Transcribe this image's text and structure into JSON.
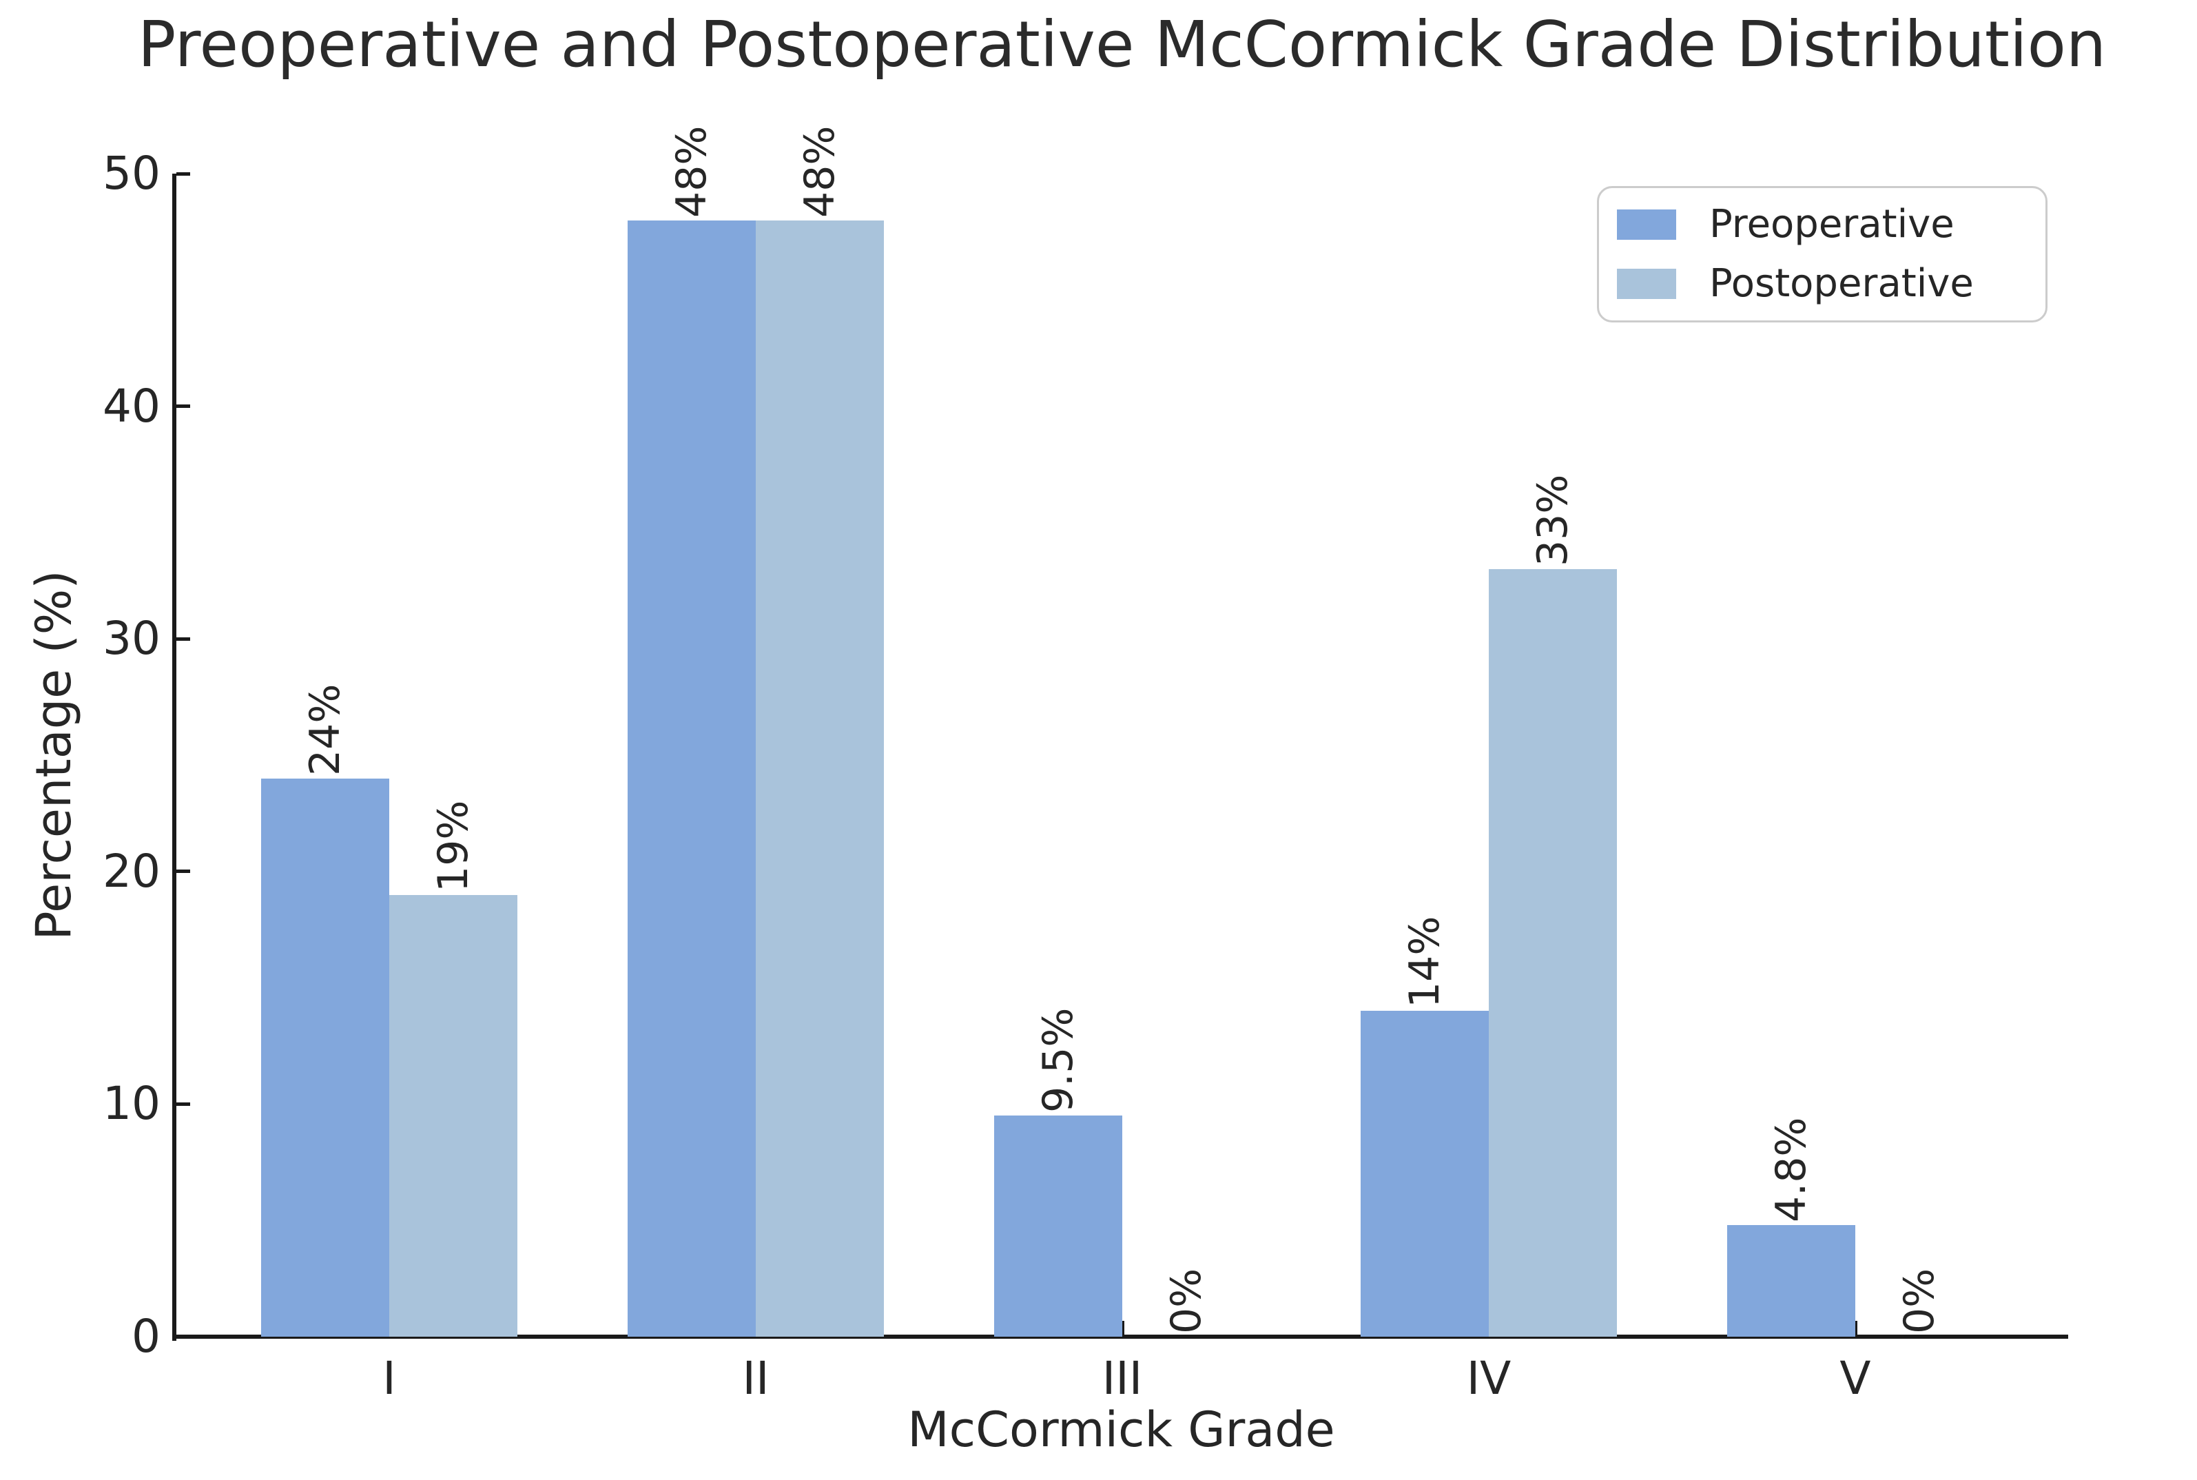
{
  "title": "Preoperative and Postoperative McCormick Grade Distribution",
  "chart_data": {
    "type": "bar",
    "title": "Preoperative and Postoperative McCormick Grade Distribution",
    "xlabel": "McCormick Grade",
    "ylabel": "Percentage (%)",
    "categories": [
      "I",
      "II",
      "III",
      "IV",
      "V"
    ],
    "series": [
      {
        "name": "Preoperative",
        "color": "#82A7DC",
        "values": [
          24,
          48,
          9.5,
          14,
          4.8
        ],
        "value_labels": [
          "24%",
          "48%",
          "9.5%",
          "14%",
          "4.8%"
        ]
      },
      {
        "name": "Postoperative",
        "color": "#A9C3DB",
        "values": [
          19,
          48,
          0,
          33,
          0
        ],
        "value_labels": [
          "19%",
          "48%",
          "0%",
          "33%",
          "0%"
        ]
      }
    ],
    "ylim": [
      0,
      50
    ],
    "yticks": [
      "0",
      "10",
      "20",
      "30",
      "40",
      "50"
    ],
    "grid": false,
    "legend_position": "upper right",
    "value_label_rotation": 90,
    "tick_direction": "in"
  },
  "colors": {
    "preoperative": "#82A7DC",
    "postoperative": "#A9C3DB",
    "axis": "#1a1a1a",
    "text": "#262626",
    "legend_border": "#cccccc",
    "background": "#ffffff"
  }
}
